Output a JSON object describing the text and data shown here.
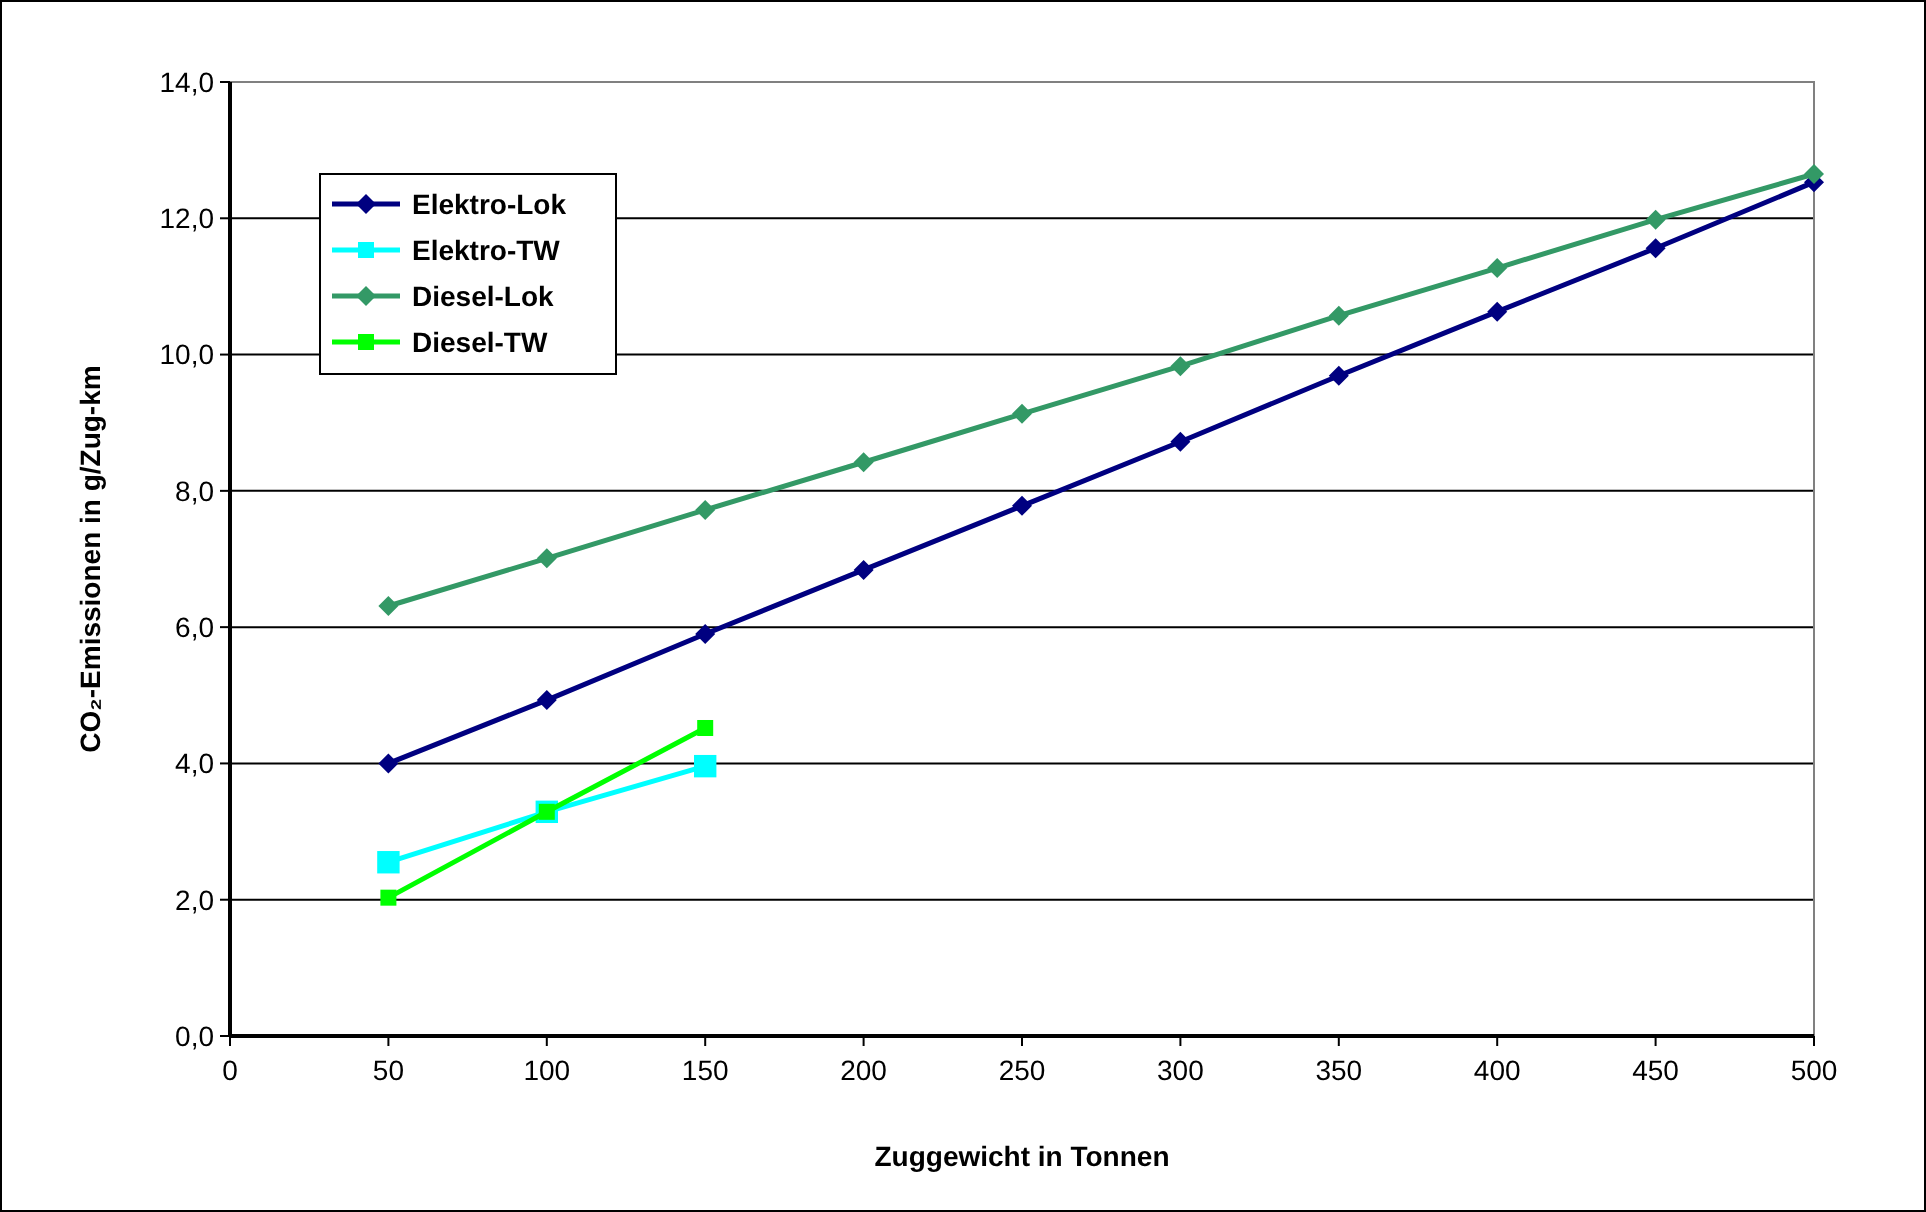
{
  "chart_data": {
    "type": "line",
    "xlabel": "Zuggewicht in Tonnen",
    "ylabel": "CO₂-Emissionen in g/Zug-km",
    "xlim": [
      0,
      500
    ],
    "xticks": [
      0,
      50,
      100,
      150,
      200,
      250,
      300,
      350,
      400,
      450,
      500
    ],
    "ylim": [
      0,
      14
    ],
    "yticks": [
      {
        "value": 0,
        "label": "0,0"
      },
      {
        "value": 2,
        "label": "2,0"
      },
      {
        "value": 4,
        "label": "4,0"
      },
      {
        "value": 6,
        "label": "6,0"
      },
      {
        "value": 8,
        "label": "8,0"
      },
      {
        "value": 10,
        "label": "10,0"
      },
      {
        "value": 12,
        "label": "12,0"
      },
      {
        "value": 14,
        "label": "14,0"
      }
    ],
    "grid": "y",
    "legend": "top left",
    "line_style": "solid",
    "series": [
      {
        "name": "Elektro-Lok",
        "color": "#000080",
        "marker": "diamond",
        "x": [
          50,
          100,
          150,
          200,
          250,
          300,
          350,
          400,
          450,
          500
        ],
        "values": [
          4.0,
          4.93,
          5.9,
          6.84,
          7.78,
          8.72,
          9.69,
          10.63,
          11.56,
          12.53
        ]
      },
      {
        "name": "Elektro-TW",
        "color": "#00ffff",
        "marker": "square",
        "x": [
          50,
          100,
          150
        ],
        "values": [
          2.55,
          3.29,
          3.96
        ]
      },
      {
        "name": "Diesel-Lok",
        "color": "#339966",
        "marker": "diamond",
        "x": [
          50,
          100,
          150,
          200,
          250,
          300,
          350,
          400,
          450,
          500
        ],
        "values": [
          6.31,
          7.01,
          7.72,
          8.42,
          9.13,
          9.83,
          10.57,
          11.27,
          11.98,
          12.65
        ]
      },
      {
        "name": "Diesel-TW",
        "color": "#00ff00",
        "marker": "square",
        "x": [
          50,
          100,
          150
        ],
        "values": [
          2.03,
          3.29,
          4.52
        ]
      }
    ]
  }
}
